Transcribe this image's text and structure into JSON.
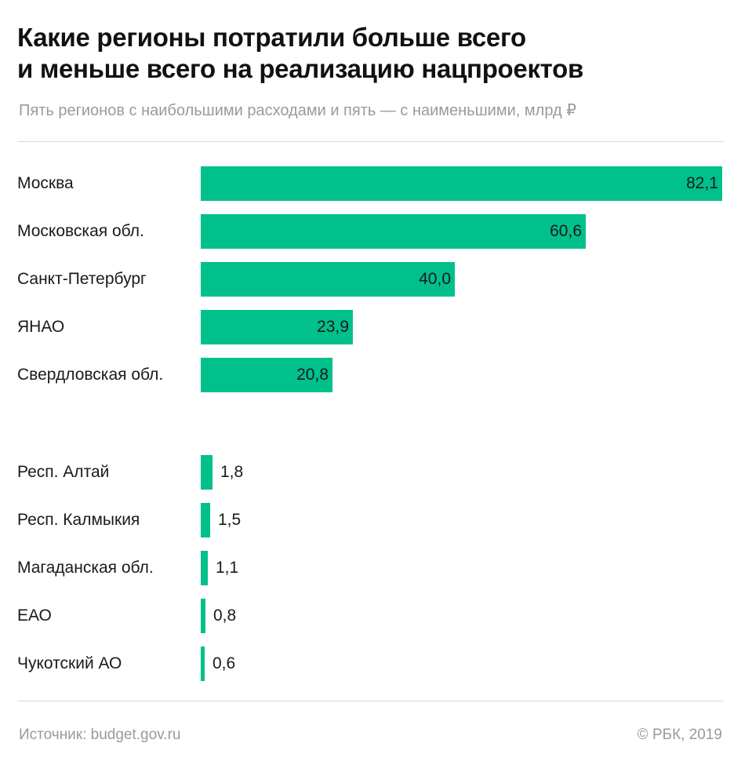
{
  "header": {
    "title_line1": "Какие регионы потратили больше всего",
    "title_line2": "и меньше всего на реализацию нацпроектов",
    "subtitle": "Пять регионов с наибольшими расходами и пять — с наименьшими, млрд ₽"
  },
  "colors": {
    "bar": "#00c08b",
    "text": "#111111",
    "muted": "#9a9a9a"
  },
  "chart_data": {
    "type": "bar",
    "orientation": "horizontal",
    "title": "Какие регионы потратили больше всего и меньше всего на реализацию нацпроектов",
    "subtitle": "Пять регионов с наибольшими расходами и пять — с наименьшими, млрд ₽",
    "xlim": [
      0,
      82.1
    ],
    "grid": false,
    "groups": [
      {
        "categories": [
          "Москва",
          "Московская обл.",
          "Санкт-Петербург",
          "ЯНАО",
          "Свердловская обл."
        ],
        "values": [
          82.1,
          60.6,
          40.0,
          23.9,
          20.8
        ],
        "labels": [
          "82,1",
          "60,6",
          "40,0",
          "23,9",
          "20,8"
        ]
      },
      {
        "categories": [
          "Респ. Алтай",
          "Респ. Калмыкия",
          "Магаданская обл.",
          "ЕАО",
          "Чукотский АО"
        ],
        "values": [
          1.8,
          1.5,
          1.1,
          0.8,
          0.6
        ],
        "labels": [
          "1,8",
          "1,5",
          "1,1",
          "0,8",
          "0,6"
        ]
      }
    ]
  },
  "footer": {
    "source": "Источник: budget.gov.ru",
    "credit": "© РБК, 2019"
  }
}
